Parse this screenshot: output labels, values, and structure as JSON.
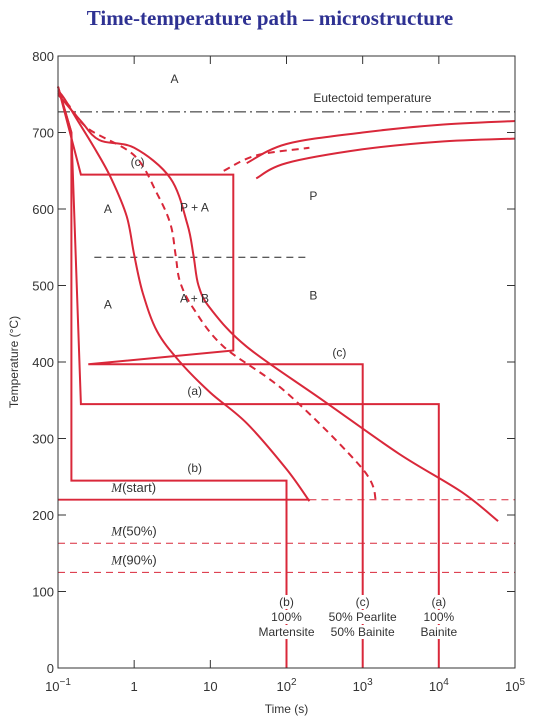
{
  "slide_title": "Time-temperature path – microstructure",
  "chart_data": {
    "type": "line",
    "title": "",
    "xlabel": "Time (s)",
    "ylabel": "Temperature (°C)",
    "x_scale": "log",
    "xlim": [
      0.1,
      100000
    ],
    "ylim": [
      0,
      800
    ],
    "y_ticks": [
      0,
      100,
      200,
      300,
      400,
      500,
      600,
      700,
      800
    ],
    "x_ticks": [
      {
        "value": 0.1,
        "base": "10",
        "exp": "−1"
      },
      {
        "value": 1,
        "base": "1",
        "exp": ""
      },
      {
        "value": 10,
        "base": "10",
        "exp": ""
      },
      {
        "value": 100,
        "base": "10",
        "exp": "2"
      },
      {
        "value": 1000,
        "base": "10",
        "exp": "3"
      },
      {
        "value": 10000,
        "base": "10",
        "exp": "4"
      },
      {
        "value": 100000,
        "base": "10",
        "exp": "5"
      }
    ],
    "colors": {
      "curve": "#d9283a",
      "path": "#d9283a",
      "axis": "#333333",
      "text": "#333333"
    },
    "transformation_curves": [
      {
        "name": "pearlite start",
        "style": "solid",
        "points": [
          [
            0.1,
            755
          ],
          [
            0.12,
            745
          ],
          [
            0.17,
            720
          ],
          [
            0.3,
            680
          ],
          [
            0.5,
            640
          ],
          [
            0.8,
            590
          ],
          [
            1.0,
            540
          ],
          [
            1.3,
            490
          ],
          [
            2,
            440
          ],
          [
            4,
            400
          ],
          [
            10,
            360
          ],
          [
            30,
            320
          ],
          [
            100,
            260
          ],
          [
            200,
            218
          ]
        ]
      },
      {
        "name": "50% completion",
        "style": "dashed",
        "points": [
          [
            0.1,
            752
          ],
          [
            0.14,
            735
          ],
          [
            0.25,
            705
          ],
          [
            1,
            670
          ],
          [
            2,
            620
          ],
          [
            3,
            580
          ],
          [
            3.5,
            540
          ],
          [
            4,
            505
          ],
          [
            6,
            470
          ],
          [
            15,
            420
          ],
          [
            100,
            360
          ],
          [
            1000,
            260
          ],
          [
            1500,
            218
          ]
        ]
      },
      {
        "name": "completion",
        "style": "solid",
        "points": [
          [
            0.1,
            750
          ],
          [
            0.2,
            715
          ],
          [
            0.35,
            690
          ],
          [
            1,
            680
          ],
          [
            3,
            640
          ],
          [
            5,
            580
          ],
          [
            6,
            540
          ],
          [
            7,
            500
          ],
          [
            10,
            470
          ],
          [
            30,
            420
          ],
          [
            300,
            350
          ],
          [
            3000,
            280
          ],
          [
            20000,
            230
          ],
          [
            60000,
            192
          ]
        ]
      }
    ],
    "upper_curves": [
      {
        "style": "solid",
        "points": [
          [
            30,
            660
          ],
          [
            100,
            685
          ],
          [
            1000,
            700
          ],
          [
            10000,
            710
          ],
          [
            100000,
            715
          ]
        ]
      },
      {
        "style": "dashed",
        "points": [
          [
            15,
            650
          ],
          [
            40,
            670
          ],
          [
            200,
            680
          ]
        ]
      },
      {
        "style": "solid",
        "points": [
          [
            40,
            640
          ],
          [
            100,
            660
          ],
          [
            1000,
            678
          ],
          [
            10000,
            688
          ],
          [
            100000,
            692
          ]
        ]
      }
    ],
    "reference_lines": [
      {
        "label": "Eutectoid temperature",
        "y": 727,
        "style": "dashdot",
        "x_from": 0.1,
        "x_to": 100000
      },
      {
        "label": "M(start)",
        "y": 220,
        "style": "dashed",
        "x_from": 200,
        "x_to": 100000
      },
      {
        "label": "M(50%)",
        "y": 163,
        "style": "dashed",
        "x_from": 0.1,
        "x_to": 100000
      },
      {
        "label": "M(90%)",
        "y": 125,
        "style": "dashed",
        "x_from": 0.1,
        "x_to": 100000
      },
      {
        "label": "",
        "y": 537,
        "style": "dashed",
        "x_from": 0.3,
        "x_to": 200
      }
    ],
    "m_start_solid": {
      "y": 220,
      "x_from": 0.1,
      "x_to": 200
    },
    "paths": [
      {
        "label": "(a)",
        "points": [
          [
            0.1,
            760
          ],
          [
            0.15,
            700
          ],
          [
            0.2,
            345
          ],
          [
            10000,
            345
          ],
          [
            10000,
            0
          ]
        ]
      },
      {
        "label": "(b)",
        "points": [
          [
            0.1,
            760
          ],
          [
            0.15,
            700
          ],
          [
            0.15,
            245
          ],
          [
            100,
            245
          ],
          [
            100,
            0
          ]
        ]
      },
      {
        "label": "(c)",
        "points": [
          [
            0.1,
            760
          ],
          [
            0.12,
            730
          ],
          [
            0.2,
            645
          ],
          [
            20,
            645
          ],
          [
            20,
            415
          ],
          [
            0.25,
            397
          ],
          [
            1000,
            397
          ],
          [
            1000,
            0
          ]
        ]
      }
    ],
    "region_labels": [
      {
        "text": "A",
        "x": 3,
        "y": 765
      },
      {
        "text": "A",
        "x": 0.4,
        "y": 595
      },
      {
        "text": "P + A",
        "x": 4,
        "y": 597
      },
      {
        "text": "P",
        "x": 200,
        "y": 612
      },
      {
        "text": "A",
        "x": 0.4,
        "y": 470
      },
      {
        "text": "A + B",
        "x": 4,
        "y": 478
      },
      {
        "text": "B",
        "x": 200,
        "y": 482
      },
      {
        "text": "(c)",
        "x": 0.9,
        "y": 656
      },
      {
        "text": "(c)",
        "x": 400,
        "y": 407
      },
      {
        "text": "(a)",
        "x": 5,
        "y": 357
      },
      {
        "text": "(b)",
        "x": 5,
        "y": 256
      },
      {
        "text": "Eutectoid temperature",
        "x": 8000,
        "y": 740,
        "anchor": "end"
      }
    ],
    "m_labels": [
      {
        "name": "M",
        "suffix": "(start)",
        "x": 0.5,
        "y": 230
      },
      {
        "name": "M",
        "suffix": "(50%)",
        "x": 0.5,
        "y": 173
      },
      {
        "name": "M",
        "suffix": "(90%)",
        "x": 0.5,
        "y": 135
      }
    ],
    "outcome_labels": [
      {
        "x": 100,
        "lines": [
          "(b)",
          "100%",
          "Martensite"
        ]
      },
      {
        "x": 1000,
        "lines": [
          "(c)",
          "50% Pearlite",
          "50% Bainite"
        ]
      },
      {
        "x": 10000,
        "lines": [
          "(a)",
          "100%",
          "Bainite"
        ]
      }
    ]
  }
}
